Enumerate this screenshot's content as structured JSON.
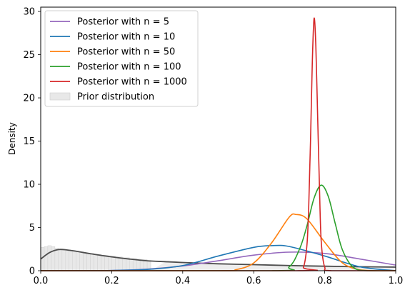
{
  "chart_data": {
    "type": "line",
    "title": "",
    "xlabel": "",
    "ylabel": "Density",
    "xlim": [
      0.0,
      1.0
    ],
    "ylim": [
      0,
      30.5
    ],
    "xticks": [
      "0.0",
      "0.2",
      "0.4",
      "0.6",
      "0.8",
      "1.0"
    ],
    "yticks": [
      "0",
      "5",
      "10",
      "15",
      "20",
      "25",
      "30"
    ],
    "grid": false,
    "legend_position": "top-left",
    "series": [
      {
        "name": "Posterior with n = 5",
        "color": "#9467bd",
        "x": [
          0.0,
          0.1,
          0.2,
          0.3,
          0.4,
          0.5,
          0.6,
          0.7,
          0.8,
          0.9,
          1.0
        ],
        "y": [
          0.0,
          0.0,
          0.03,
          0.18,
          0.55,
          1.15,
          1.8,
          2.15,
          2.0,
          1.35,
          0.65
        ]
      },
      {
        "name": "Posterior with n = 10",
        "color": "#1f77b4",
        "x": [
          0.0,
          0.1,
          0.2,
          0.3,
          0.4,
          0.5,
          0.6,
          0.65,
          0.7,
          0.8,
          0.9,
          1.0
        ],
        "y": [
          0.0,
          0.0,
          0.03,
          0.15,
          0.6,
          1.7,
          2.7,
          2.9,
          2.8,
          1.7,
          0.45,
          0.0
        ]
      },
      {
        "name": "Posterior with n = 50",
        "color": "#ff7f0e",
        "x": [
          0.5,
          0.55,
          0.6,
          0.65,
          0.7,
          0.72,
          0.75,
          0.8,
          0.85,
          0.9,
          0.95
        ],
        "y": [
          0.0,
          0.12,
          0.9,
          3.2,
          6.2,
          6.5,
          6.0,
          3.3,
          0.9,
          0.1,
          0.0
        ]
      },
      {
        "name": "Posterior with n = 100",
        "color": "#2ca02c",
        "x": [
          0.65,
          0.7,
          0.73,
          0.75,
          0.77,
          0.79,
          0.81,
          0.83,
          0.85,
          0.88,
          0.92
        ],
        "y": [
          0.0,
          0.45,
          2.6,
          5.2,
          8.4,
          9.9,
          8.6,
          5.4,
          2.4,
          0.4,
          0.0
        ]
      },
      {
        "name": "Posterior with n = 1000",
        "color": "#d62728",
        "x": [
          0.72,
          0.74,
          0.75,
          0.755,
          0.76,
          0.765,
          0.77,
          0.775,
          0.78,
          0.785,
          0.79,
          0.8,
          0.82
        ],
        "y": [
          0.0,
          0.4,
          3.0,
          7.5,
          15.0,
          24.0,
          29.2,
          26.0,
          18.0,
          10.0,
          3.5,
          0.4,
          0.0
        ]
      }
    ],
    "prior": {
      "name": "Prior distribution",
      "line_color": "#4d4d4d",
      "fill_color": "#e8e8e8",
      "x": [
        0.0,
        0.025,
        0.05,
        0.075,
        0.1,
        0.15,
        0.2,
        0.25,
        0.3,
        0.35,
        0.4,
        0.5,
        0.6,
        0.7,
        0.8,
        0.9,
        1.0
      ],
      "y": [
        1.35,
        2.1,
        2.45,
        2.4,
        2.25,
        1.9,
        1.6,
        1.35,
        1.15,
        1.05,
        0.95,
        0.8,
        0.7,
        0.6,
        0.52,
        0.46,
        0.42
      ],
      "hist_bin_width": 0.01,
      "hist_y": [
        2.7,
        2.8,
        2.9,
        2.8,
        2.6,
        2.4,
        2.4,
        2.3,
        2.3,
        2.2,
        2.2,
        2.1,
        2.1,
        2.0,
        2.0,
        1.9,
        1.9,
        1.8,
        1.8,
        1.7,
        1.7,
        1.6,
        1.6,
        1.5,
        1.5,
        1.4,
        1.4,
        1.35,
        1.3,
        1.3,
        1.2
      ]
    }
  }
}
